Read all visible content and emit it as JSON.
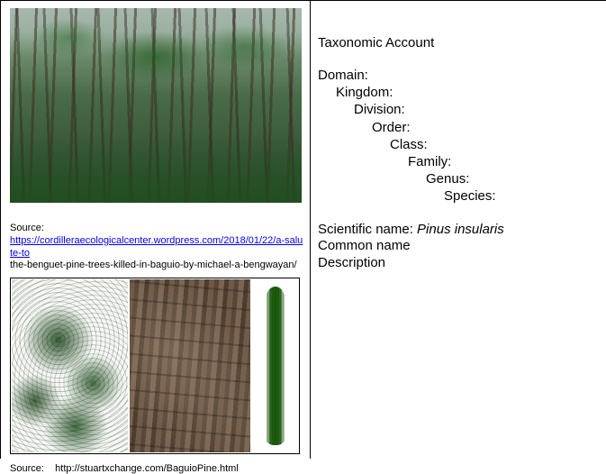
{
  "left": {
    "forest_image": {
      "alt": "Benguet pine forest photograph",
      "dominant_colors": [
        "#a8b8b0",
        "#4a6b4a",
        "#2a4a2a",
        "#3c2d1e"
      ]
    },
    "source1": {
      "label": "Source:",
      "url_text": "https://cordilleraecologicalcenter.wordpress.com/2018/01/22/a-salute-to",
      "tail": "the-benguet-pine-trees-killed-in-baguio-by-michael-a-bengwayan/"
    },
    "triptych": {
      "panels": [
        {
          "name": "pine-branches",
          "bg": "#f7f8f6",
          "accent": "#1e4a1e"
        },
        {
          "name": "bark-closeup",
          "bg": "#6a5544",
          "accent": "#4e3d2e"
        },
        {
          "name": "needle-cluster",
          "bg": "#ffffff",
          "accent": "#1a5a0a"
        }
      ]
    },
    "source2": {
      "label": "Source:",
      "url_text": "http://stuartxchange.com/BaguioPine.html"
    }
  },
  "right": {
    "section_title": "Taxonomic Account",
    "taxonomy": [
      {
        "level": 0,
        "label": "Domain:"
      },
      {
        "level": 1,
        "label": "Kingdom:"
      },
      {
        "level": 2,
        "label": "Division:"
      },
      {
        "level": 3,
        "label": "Order:"
      },
      {
        "level": 4,
        "label": "Class:"
      },
      {
        "level": 5,
        "label": "Family:"
      },
      {
        "level": 6,
        "label": "Genus:"
      },
      {
        "level": 7,
        "label": "Species:"
      }
    ],
    "scientific_name_label": "Scientific name: ",
    "scientific_name_value": "Pinus insularis",
    "common_name_label": "Common name",
    "description_label": "Description"
  }
}
